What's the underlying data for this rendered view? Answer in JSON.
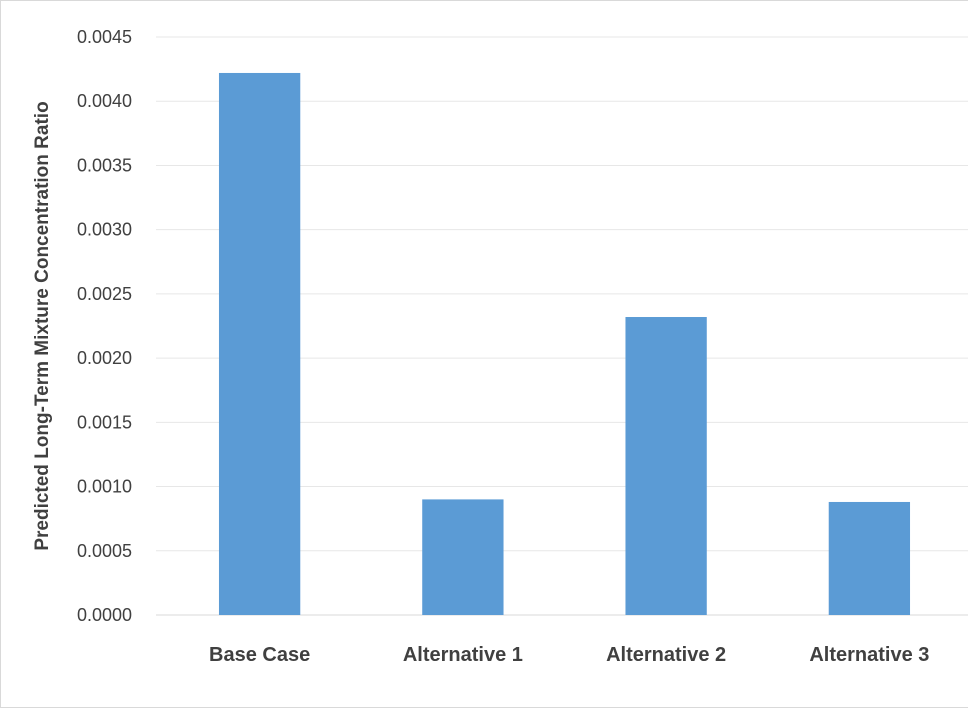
{
  "chart_data": {
    "type": "bar",
    "title": "",
    "xlabel": "",
    "ylabel": "Predicted Long-Term Mixture Concentration Ratio",
    "categories": [
      "Base Case",
      "Alternative 1",
      "Alternative 2",
      "Alternative 3"
    ],
    "values": [
      0.00422,
      0.0009,
      0.00232,
      0.00088
    ],
    "ylim": [
      0,
      0.0045
    ],
    "yticks": [
      "0.0000",
      "0.0005",
      "0.0010",
      "0.0015",
      "0.0020",
      "0.0025",
      "0.0030",
      "0.0035",
      "0.0040",
      "0.0045"
    ],
    "bar_color": "#5b9bd5",
    "grid": true,
    "legend": "none"
  }
}
